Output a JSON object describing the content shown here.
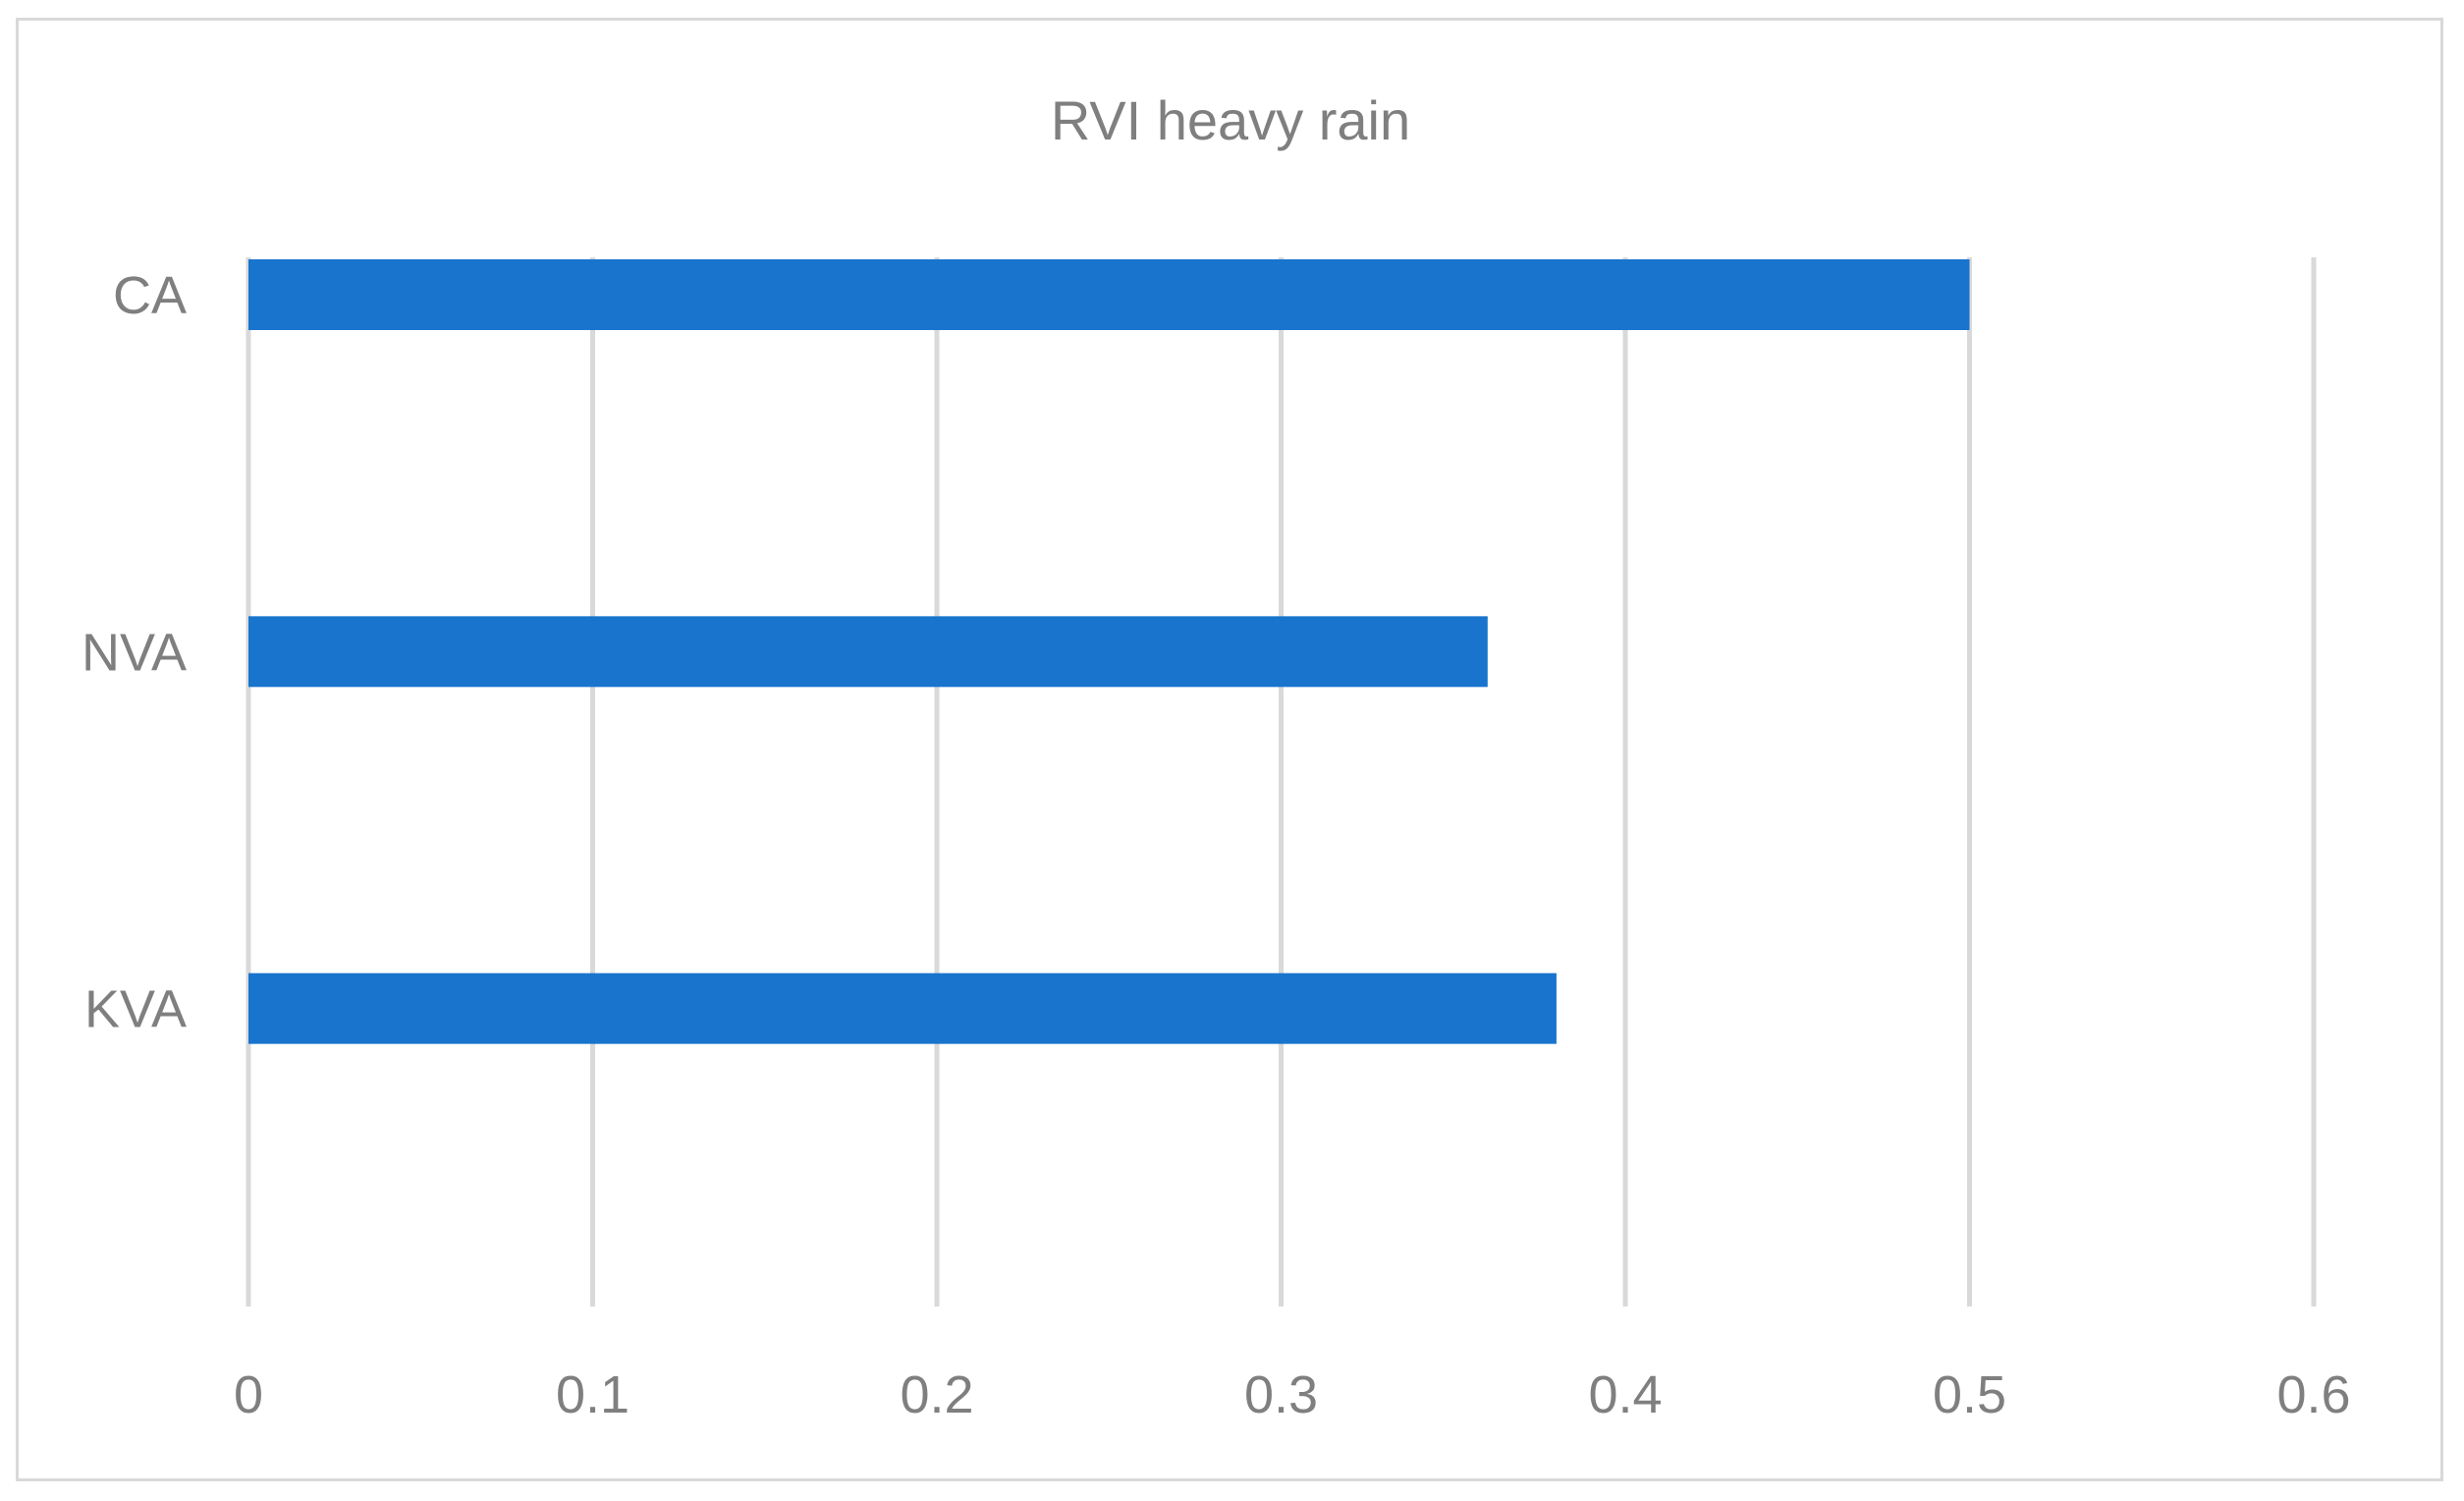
{
  "chart_data": {
    "type": "bar",
    "orientation": "horizontal",
    "title": "RVI heavy rain",
    "categories": [
      "CA",
      "NVA",
      "KVA"
    ],
    "values": [
      0.5,
      0.36,
      0.38
    ],
    "xlabel": "",
    "ylabel": "",
    "xlim": [
      0,
      0.6
    ],
    "x_ticks": [
      "0",
      "0.1",
      "0.2",
      "0.3",
      "0.4",
      "0.5",
      "0.6"
    ],
    "grid": "vertical",
    "legend": "none",
    "bar_color": "#1874cd"
  }
}
